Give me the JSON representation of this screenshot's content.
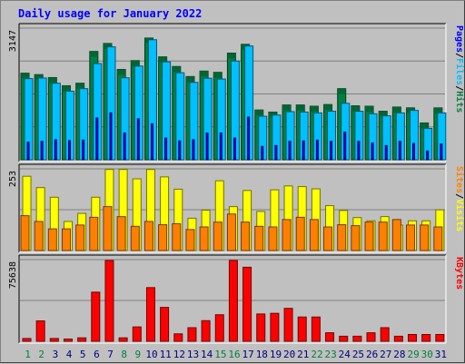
{
  "chart_data": {
    "type": "bar",
    "title": "Daily usage for January 2022",
    "categories": [
      "1",
      "2",
      "3",
      "4",
      "5",
      "6",
      "7",
      "8",
      "9",
      "10",
      "11",
      "12",
      "13",
      "14",
      "15",
      "16",
      "17",
      "18",
      "19",
      "20",
      "21",
      "22",
      "23",
      "24",
      "25",
      "26",
      "27",
      "28",
      "29",
      "30",
      "31"
    ],
    "weekend_days": [
      "1",
      "2",
      "8",
      "9",
      "15",
      "16",
      "22",
      "23",
      "29",
      "30"
    ],
    "panels": [
      {
        "name": "top",
        "ymax_label": "3147",
        "ymax": 3147,
        "right_label": [
          "Pages",
          "/",
          "Files",
          "/",
          "Hits"
        ],
        "series": [
          {
            "name": "Hits",
            "color": "#008040",
            "values": [
              2070,
              2035,
              1965,
              1770,
              1830,
              2590,
              2780,
              2160,
              2370,
              2910,
              2460,
              2230,
              1990,
              2120,
              2090,
              2550,
              2760,
              1190,
              1140,
              1310,
              1310,
              1280,
              1320,
              1700,
              1290,
              1280,
              1160,
              1260,
              1240,
              880,
              1240
            ]
          },
          {
            "name": "Files",
            "color": "#00c0ff",
            "values": [
              1940,
              1955,
              1830,
              1640,
              1700,
              2300,
              2700,
              1960,
              2240,
              2870,
              2340,
              2080,
              1850,
              1950,
              1930,
              2360,
              2720,
              1040,
              1070,
              1150,
              1140,
              1120,
              1160,
              1350,
              1160,
              1100,
              1050,
              1120,
              1180,
              750,
              1120
            ]
          },
          {
            "name": "Pages",
            "color": "#0000ff",
            "values": [
              420,
              440,
              480,
              460,
              470,
              1000,
              1120,
              640,
              980,
              860,
              520,
              450,
              480,
              640,
              640,
              520,
              1020,
              320,
              340,
              440,
              450,
              470,
              440,
              660,
              440,
              400,
              340,
              440,
              390,
              210,
              380
            ]
          }
        ]
      },
      {
        "name": "middle",
        "ymax_label": "253",
        "ymax": 253,
        "right_label": [
          "Sites",
          "/",
          "Visits"
        ],
        "series": [
          {
            "name": "Visits",
            "color": "#ffff00",
            "values": [
              230,
              195,
              165,
              90,
              115,
              165,
              251,
              251,
              222,
              251,
              228,
              190,
              100,
              125,
              216,
              136,
              186,
              121,
              188,
              200,
              198,
              191,
              139,
              124,
              102,
              92,
              105,
              79,
              92,
              92,
              126
            ]
          },
          {
            "name": "Sites",
            "color": "#ff8000",
            "values": [
              108,
              90,
              67,
              67,
              79,
              103,
              136,
              105,
              75,
              90,
              80,
              83,
              65,
              73,
              88,
              113,
              88,
              75,
              73,
              96,
              103,
              96,
              73,
              80,
              77,
              88,
              88,
              96,
              79,
              79,
              73
            ]
          }
        ]
      },
      {
        "name": "bottom",
        "ymax_label": "75638",
        "ymax": 75638,
        "right_label": [
          "KBytes"
        ],
        "series": [
          {
            "name": "KBytes",
            "color": "#ff0000",
            "values": [
              2600,
              18900,
              2600,
              2100,
              3200,
              45500,
              74800,
              3200,
              13300,
              49700,
              31400,
              6900,
              12600,
              19100,
              24600,
              74800,
              68600,
              25300,
              25900,
              30500,
              22500,
              22500,
              7900,
              4700,
              4700,
              7900,
              12600,
              4700,
              6300,
              6300,
              6300
            ]
          }
        ]
      }
    ]
  }
}
